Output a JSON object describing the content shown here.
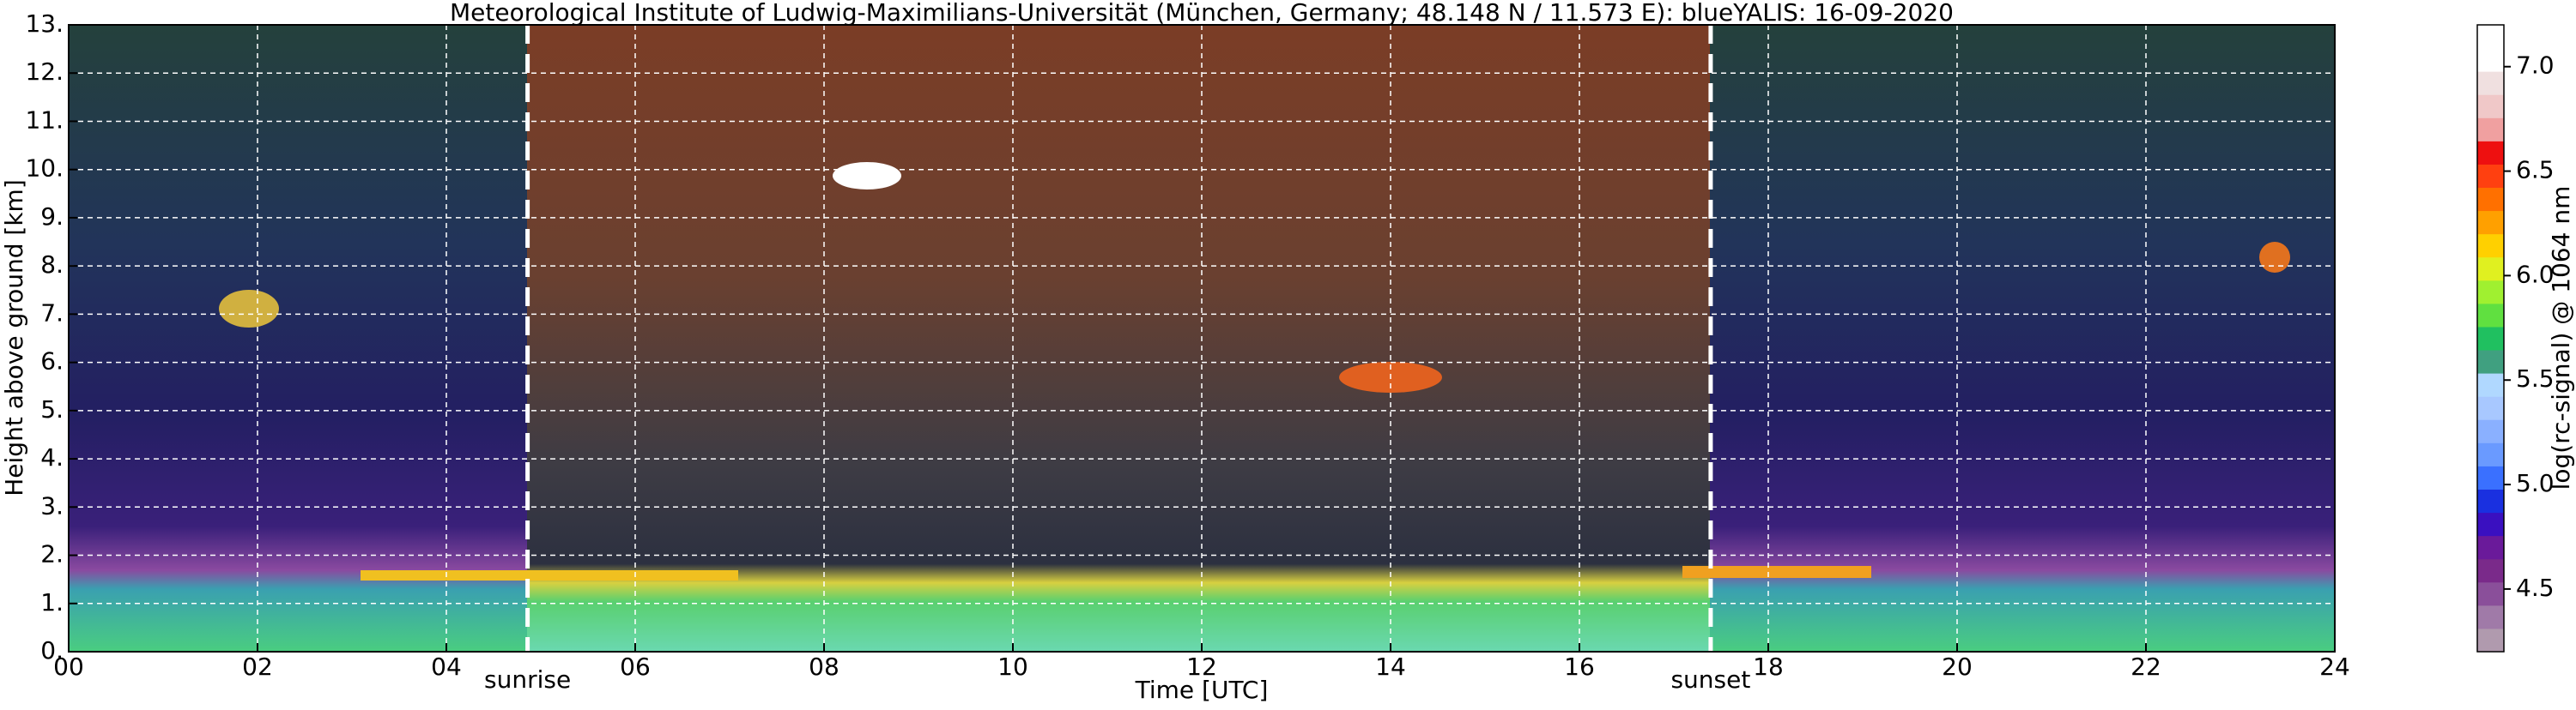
{
  "chart_data": {
    "type": "heatmap",
    "title": "Meteorological Institute of Ludwig-Maximilians-Universität (München, Germany; 48.148 N / 11.573 E):     blueYALIS: 16-09-2020",
    "xlabel": "Time [UTC]",
    "ylabel": "Height above ground [km]",
    "xlim": [
      0,
      24
    ],
    "xticks": [
      {
        "value": 0,
        "label": "00"
      },
      {
        "value": 2,
        "label": "02"
      },
      {
        "value": 4,
        "label": "04"
      },
      {
        "value": 6,
        "label": "06"
      },
      {
        "value": 8,
        "label": "08"
      },
      10,
      12,
      14,
      16,
      18,
      20,
      22,
      24
    ],
    "ylim": [
      0,
      13
    ],
    "yticks": [
      {
        "value": 0,
        "label": "0."
      },
      {
        "value": 1,
        "label": "1."
      },
      {
        "value": 2,
        "label": "2."
      },
      {
        "value": 3,
        "label": "3."
      },
      {
        "value": 4,
        "label": "4."
      },
      {
        "value": 5,
        "label": "5."
      },
      {
        "value": 6,
        "label": "6."
      },
      {
        "value": 7,
        "label": "7."
      },
      {
        "value": 8,
        "label": "8."
      },
      {
        "value": 9,
        "label": "9."
      },
      {
        "value": 10,
        "label": "10."
      },
      {
        "value": 11,
        "label": "11."
      },
      {
        "value": 12,
        "label": "12."
      },
      {
        "value": 13,
        "label": "13."
      }
    ],
    "grid": true,
    "annotations": [
      {
        "text": "sunrise",
        "x": 4.86
      },
      {
        "text": "sunset",
        "x": 17.39
      }
    ],
    "colorbar": {
      "label": "log(rc-signal) @ 1064 nm",
      "lim": [
        4.2,
        7.2
      ],
      "ticks": [
        4.5,
        {
          "value": 5,
          "label": "5.0"
        },
        5.5,
        {
          "value": 6,
          "label": "6.0"
        },
        6.5,
        {
          "value": 7,
          "label": "7.0"
        }
      ],
      "colors": [
        "#b09aae",
        "#a07aa8",
        "#8a4f9a",
        "#7a2a8a",
        "#6a1a9a",
        "#3a10c0",
        "#1a30e0",
        "#3a70ff",
        "#6a9aff",
        "#8ab0ff",
        "#a8c8ff",
        "#b0d8ff",
        "#40a080",
        "#20c060",
        "#60e040",
        "#a0f030",
        "#e0f020",
        "#ffd000",
        "#ffa000",
        "#ff7000",
        "#ff4010",
        "#ee1010",
        "#f0a0a0",
        "#f0c8c8",
        "#f0e0e0",
        "#ffffff",
        "#ffffff"
      ]
    }
  }
}
